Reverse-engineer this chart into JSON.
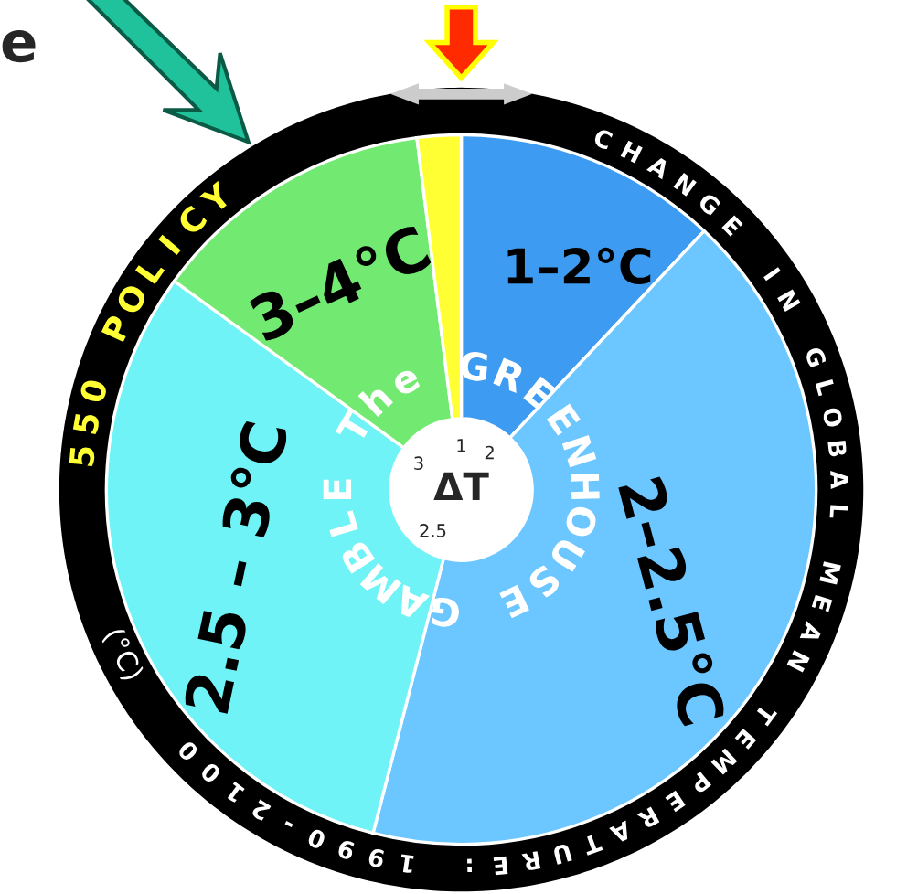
{
  "chart_data": {
    "type": "donut",
    "categories": [
      "1–2°C",
      "2–2.5°C",
      "2.5 – 3°C",
      "3–4°C",
      null
    ],
    "values": [
      12,
      42,
      31,
      13,
      2
    ],
    "colors": [
      "#3d9bf2",
      "#6cc6ff",
      "#6ff3f6",
      "#72ea72",
      "#ffff33"
    ],
    "title": "The GREENHOUSE GAMBLE",
    "annotations": [
      "ΔT",
      "1",
      "2",
      "2.5",
      "3",
      "CHANGE IN GLOBAL MEAN TEMPERATURE: 1990-2100",
      "(°C)",
      "550 POLICY",
      "e"
    ],
    "legend": false
  }
}
